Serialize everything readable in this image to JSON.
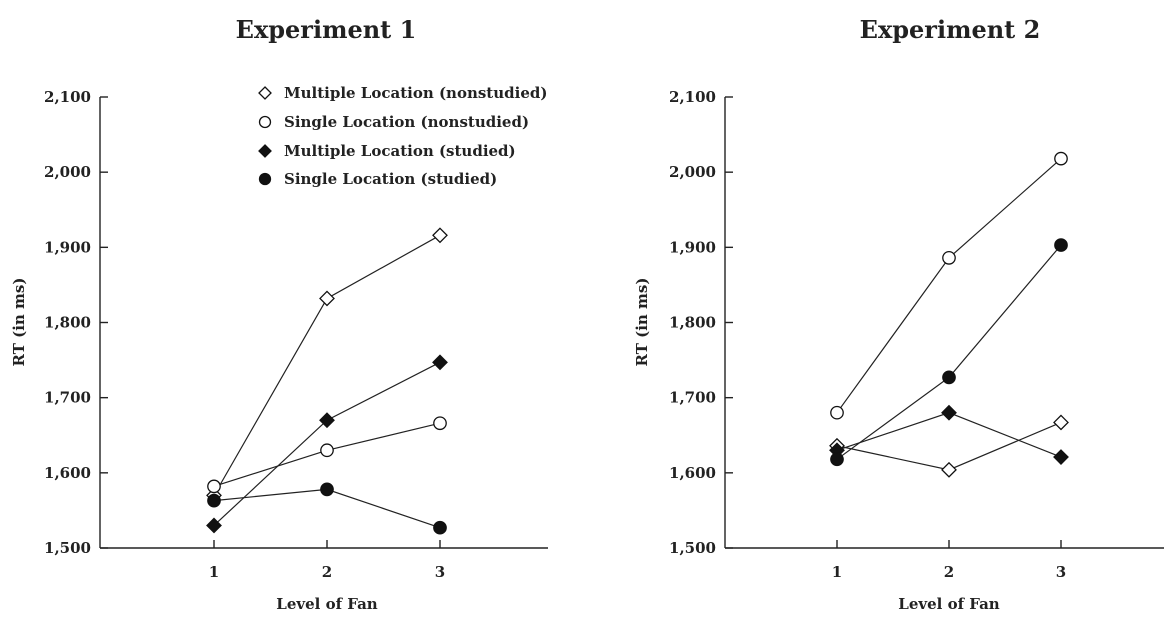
{
  "chart_data": [
    {
      "type": "line",
      "title": "Experiment 1",
      "xlabel": "Level of Fan",
      "ylabel": "RT (in ms)",
      "x": [
        1,
        2,
        3
      ],
      "x_tick_labels": [
        "1",
        "2",
        "3"
      ],
      "ylim": [
        1500,
        2100
      ],
      "y_ticks": [
        1500,
        1600,
        1700,
        1800,
        1900,
        2000,
        2100
      ],
      "y_tick_labels": [
        "1,500",
        "1,600",
        "1,700",
        "1,800",
        "1,900",
        "2,000",
        "2,100"
      ],
      "legend": "top-right",
      "series": [
        {
          "name": "Multiple Location (nonstudied)",
          "marker": "diamond-open",
          "values": [
            1570,
            1832,
            1916
          ]
        },
        {
          "name": "Single Location (nonstudied)",
          "marker": "circle-open",
          "values": [
            1582,
            1630,
            1666
          ]
        },
        {
          "name": "Multiple Location (studied)",
          "marker": "diamond-filled",
          "values": [
            1530,
            1670,
            1747
          ]
        },
        {
          "name": "Single Location (studied)",
          "marker": "circle-filled",
          "values": [
            1563,
            1578,
            1527
          ]
        }
      ]
    },
    {
      "type": "line",
      "title": "Experiment 2",
      "xlabel": "Level of Fan",
      "ylabel": "RT (in ms)",
      "x": [
        1,
        2,
        3
      ],
      "x_tick_labels": [
        "1",
        "2",
        "3"
      ],
      "ylim": [
        1500,
        2100
      ],
      "y_ticks": [
        1500,
        1600,
        1700,
        1800,
        1900,
        2000,
        2100
      ],
      "y_tick_labels": [
        "1,500",
        "1,600",
        "1,700",
        "1,800",
        "1,900",
        "2,000",
        "2,100"
      ],
      "series": [
        {
          "name": "Multiple Location (nonstudied)",
          "marker": "diamond-open",
          "values": [
            1636,
            1604,
            1667
          ]
        },
        {
          "name": "Single Location (nonstudied)",
          "marker": "circle-open",
          "values": [
            1680,
            1886,
            2018
          ]
        },
        {
          "name": "Multiple Location (studied)",
          "marker": "diamond-filled",
          "values": [
            1630,
            1680,
            1621
          ]
        },
        {
          "name": "Single Location (studied)",
          "marker": "circle-filled",
          "values": [
            1618,
            1727,
            1903
          ]
        }
      ]
    }
  ]
}
